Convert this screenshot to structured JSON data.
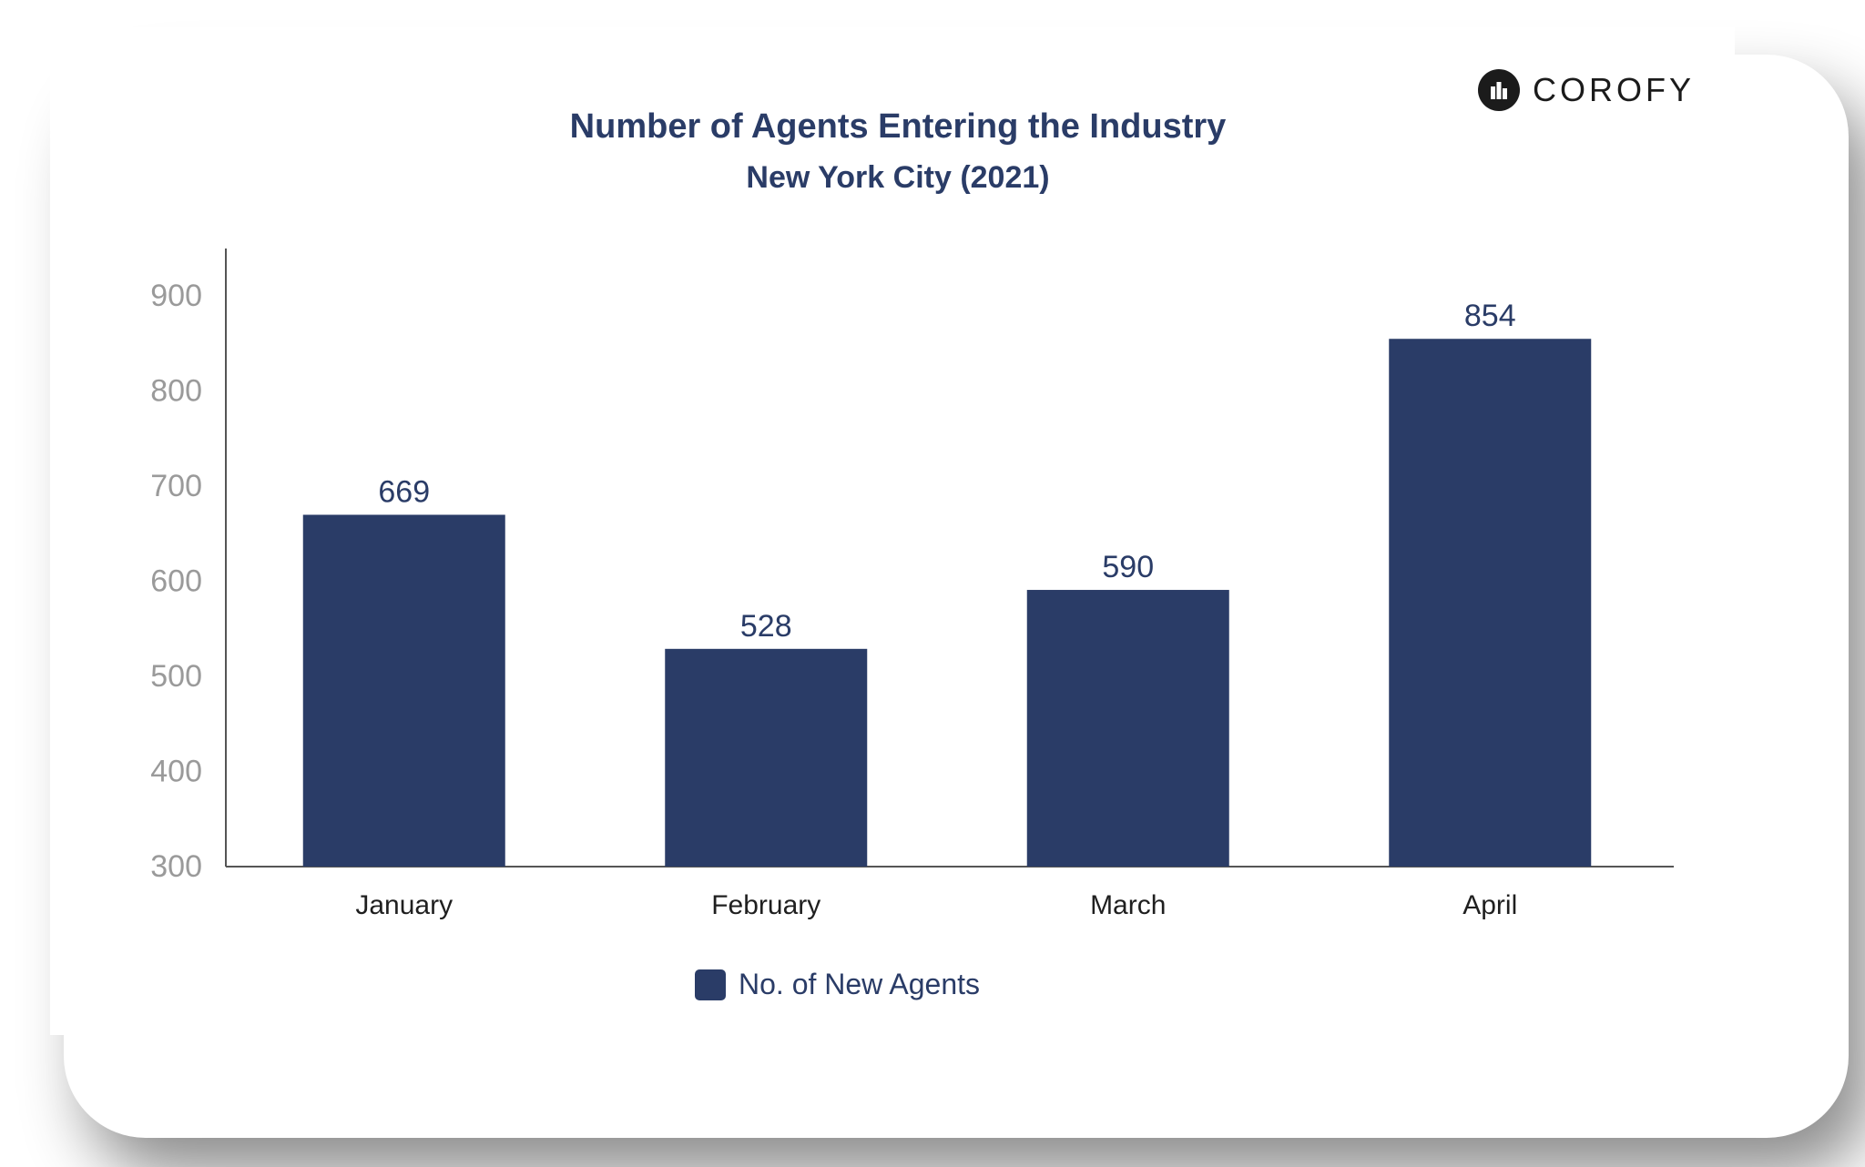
{
  "logo": {
    "text": "COROFY",
    "icon": "building-icon"
  },
  "chart_data": {
    "type": "bar",
    "title": "Number of Agents Entering the Industry",
    "subtitle": "New York City (2021)",
    "categories": [
      "January",
      "February",
      "March",
      "April"
    ],
    "series": [
      {
        "name": "No. of New Agents",
        "values": [
          669,
          528,
          590,
          854
        ],
        "color": "#2a3c67"
      }
    ],
    "data_labels": [
      "669",
      "528",
      "590",
      "854"
    ],
    "y_ticks": [
      "300",
      "400",
      "500",
      "600",
      "700",
      "800",
      "900"
    ],
    "ylim": [
      300,
      950
    ],
    "grid": false,
    "legend_position": "bottom",
    "xlabel": "",
    "ylabel": ""
  },
  "colors": {
    "bar": "#2a3c67",
    "title": "#2a3c67",
    "tick": "#9a9a9a",
    "category": "#1f1f1f",
    "axis": "#555555"
  }
}
